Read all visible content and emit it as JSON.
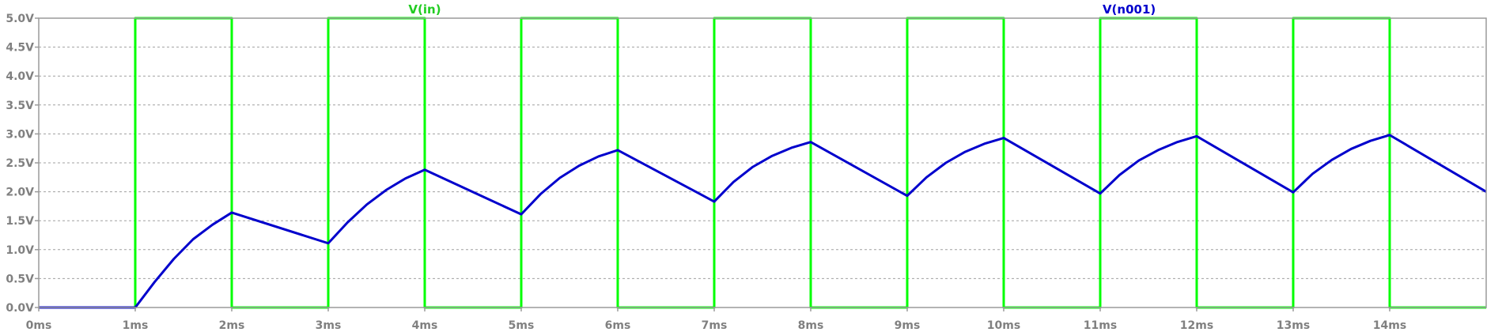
{
  "chart_data": {
    "type": "line",
    "title": "",
    "xlabel": "",
    "ylabel": "",
    "xlim": [
      0,
      15
    ],
    "ylim": [
      0,
      5
    ],
    "grid": true,
    "x_ticks": [
      {
        "value": 0,
        "label": "0ms"
      },
      {
        "value": 1,
        "label": "1ms"
      },
      {
        "value": 2,
        "label": "2ms"
      },
      {
        "value": 3,
        "label": "3ms"
      },
      {
        "value": 4,
        "label": "4ms"
      },
      {
        "value": 5,
        "label": "5ms"
      },
      {
        "value": 6,
        "label": "6ms"
      },
      {
        "value": 7,
        "label": "7ms"
      },
      {
        "value": 8,
        "label": "8ms"
      },
      {
        "value": 9,
        "label": "9ms"
      },
      {
        "value": 10,
        "label": "10ms"
      },
      {
        "value": 11,
        "label": "11ms"
      },
      {
        "value": 12,
        "label": "12ms"
      },
      {
        "value": 13,
        "label": "13ms"
      },
      {
        "value": 14,
        "label": "14ms"
      }
    ],
    "y_ticks": [
      {
        "value": 0,
        "label": "0.0V"
      },
      {
        "value": 0.5,
        "label": "0.5V"
      },
      {
        "value": 1,
        "label": "1.0V"
      },
      {
        "value": 1.5,
        "label": "1.5V"
      },
      {
        "value": 2,
        "label": "2.0V"
      },
      {
        "value": 2.5,
        "label": "2.5V"
      },
      {
        "value": 3,
        "label": "3.0V"
      },
      {
        "value": 3.5,
        "label": "3.5V"
      },
      {
        "value": 4,
        "label": "4.0V"
      },
      {
        "value": 4.5,
        "label": "4.5V"
      },
      {
        "value": 5,
        "label": "5.0V"
      }
    ],
    "series": [
      {
        "name": "V(in)",
        "color": "#00ff00",
        "label_x": 4,
        "x": [
          0,
          1,
          1,
          2,
          2,
          3,
          3,
          4,
          4,
          5,
          5,
          6,
          6,
          7,
          7,
          8,
          8,
          9,
          9,
          10,
          10,
          11,
          11,
          12,
          12,
          13,
          13,
          14,
          14,
          15
        ],
        "y": [
          0,
          0,
          5,
          5,
          0,
          0,
          5,
          5,
          0,
          0,
          5,
          5,
          0,
          0,
          5,
          5,
          0,
          0,
          5,
          5,
          0,
          0,
          5,
          5,
          0,
          0,
          5,
          5,
          0,
          0
        ]
      },
      {
        "name": "V(n001)",
        "color": "#0000cc",
        "label_x": 11.3,
        "x": [
          0,
          1,
          1.2,
          1.4,
          1.6,
          1.8,
          2,
          3,
          3.2,
          3.4,
          3.6,
          3.8,
          4,
          5,
          5.2,
          5.4,
          5.6,
          5.8,
          6,
          7,
          7.2,
          7.4,
          7.6,
          7.8,
          8,
          9,
          9.2,
          9.4,
          9.6,
          9.8,
          10,
          11,
          11.2,
          11.4,
          11.6,
          11.8,
          12,
          13,
          13.2,
          13.4,
          13.6,
          13.8,
          14,
          15
        ],
        "y": [
          0,
          0,
          0.44,
          0.84,
          1.18,
          1.43,
          1.64,
          1.11,
          1.47,
          1.78,
          2.03,
          2.23,
          2.38,
          1.61,
          1.96,
          2.24,
          2.45,
          2.61,
          2.72,
          1.83,
          2.17,
          2.43,
          2.62,
          2.76,
          2.86,
          1.93,
          2.25,
          2.5,
          2.69,
          2.83,
          2.93,
          1.97,
          2.29,
          2.54,
          2.72,
          2.86,
          2.96,
          1.99,
          2.31,
          2.55,
          2.74,
          2.88,
          2.98,
          2.0
        ]
      }
    ]
  }
}
